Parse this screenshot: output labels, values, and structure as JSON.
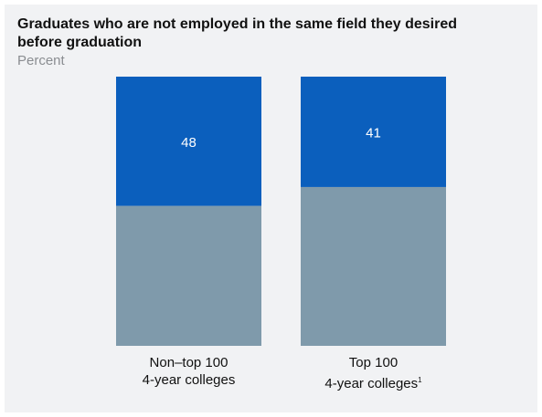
{
  "chart_data": {
    "type": "bar",
    "stacked": true,
    "title": "Graduates who are not employed in the same field they desired before graduation",
    "subtitle": "Percent",
    "categories": [
      {
        "line1": "Non–top 100",
        "line2": "4-year colleges",
        "footnote": ""
      },
      {
        "line1": "Top 100",
        "line2": "4-year colleges",
        "footnote": "1"
      }
    ],
    "values": [
      48,
      41
    ],
    "value_labels": [
      "48",
      "41"
    ],
    "ylim": [
      0,
      100
    ],
    "colors": {
      "highlight": "#0b5fbd",
      "remainder": "#7f9aab",
      "label": "#ffffff",
      "background": "#f1f2f4"
    },
    "grid": false,
    "legend": "none"
  }
}
